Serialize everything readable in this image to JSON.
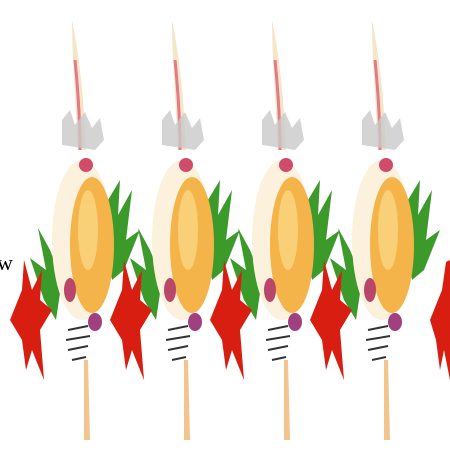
{
  "text": "w"
}
